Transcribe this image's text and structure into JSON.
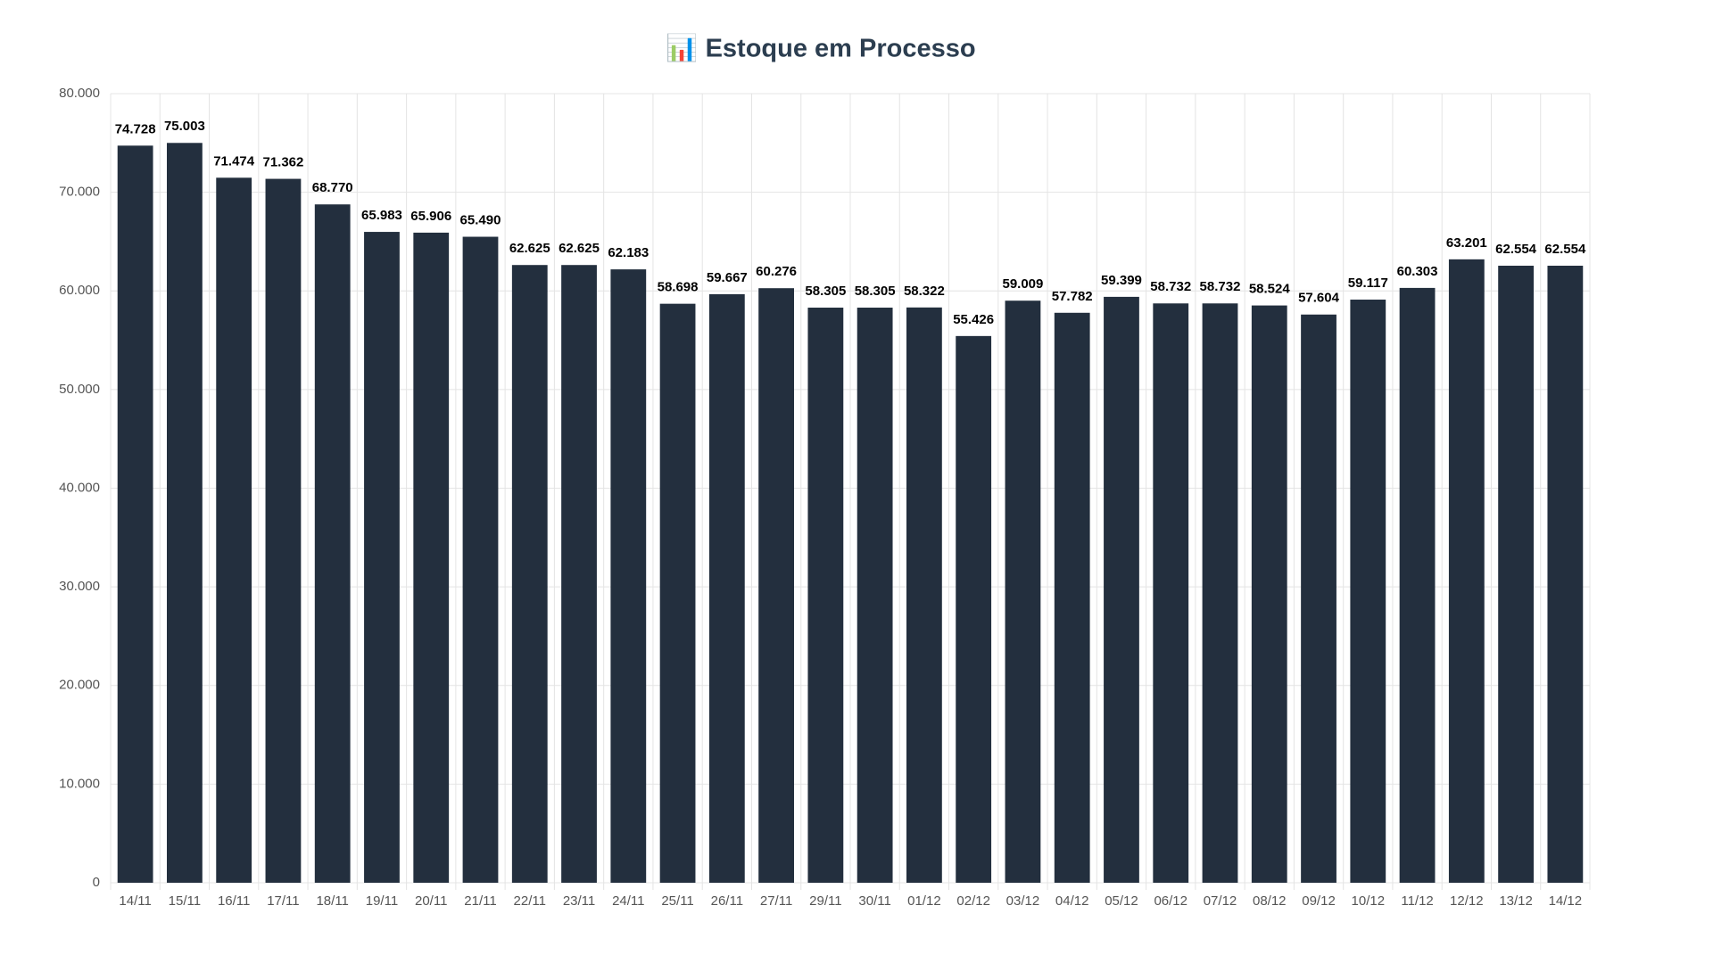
{
  "chart_data": {
    "type": "bar",
    "title": "📊 Estoque em Processo",
    "categories": [
      "14/11",
      "15/11",
      "16/11",
      "17/11",
      "18/11",
      "19/11",
      "20/11",
      "21/11",
      "22/11",
      "23/11",
      "24/11",
      "25/11",
      "26/11",
      "27/11",
      "29/11",
      "30/11",
      "01/12",
      "02/12",
      "03/12",
      "04/12",
      "05/12",
      "06/12",
      "07/12",
      "08/12",
      "09/12",
      "10/12",
      "11/12",
      "12/12",
      "13/12",
      "14/12"
    ],
    "values": [
      74728,
      75003,
      71474,
      71362,
      68770,
      65983,
      65906,
      65490,
      62625,
      62625,
      62183,
      58698,
      59667,
      60276,
      58305,
      58305,
      58322,
      55426,
      59009,
      57782,
      59399,
      58732,
      58732,
      58524,
      57604,
      59117,
      60303,
      63201,
      62554,
      62554
    ],
    "value_labels": [
      "74.728",
      "75.003",
      "71.474",
      "71.362",
      "68.770",
      "65.983",
      "65.906",
      "65.490",
      "62.625",
      "62.625",
      "62.183",
      "58.698",
      "59.667",
      "60.276",
      "58.305",
      "58.305",
      "58.322",
      "55.426",
      "59.009",
      "57.782",
      "59.399",
      "58.732",
      "58.732",
      "58.524",
      "57.604",
      "59.117",
      "60.303",
      "63.201",
      "62.554",
      "62.554"
    ],
    "color": "#232f3e",
    "ylim": [
      0,
      80000
    ],
    "yticks": [
      0,
      {
        "value": 10000,
        "label": "10.000"
      },
      {
        "value": 20000,
        "label": "20.000"
      },
      {
        "value": 30000,
        "label": "30.000"
      },
      {
        "value": 40000,
        "label": "40.000"
      },
      {
        "value": 50000,
        "label": "50.000"
      },
      {
        "value": 60000,
        "label": "60.000"
      },
      {
        "value": 70000,
        "label": "70.000"
      },
      {
        "value": 80000,
        "label": "80.000"
      }
    ],
    "grid": true
  }
}
